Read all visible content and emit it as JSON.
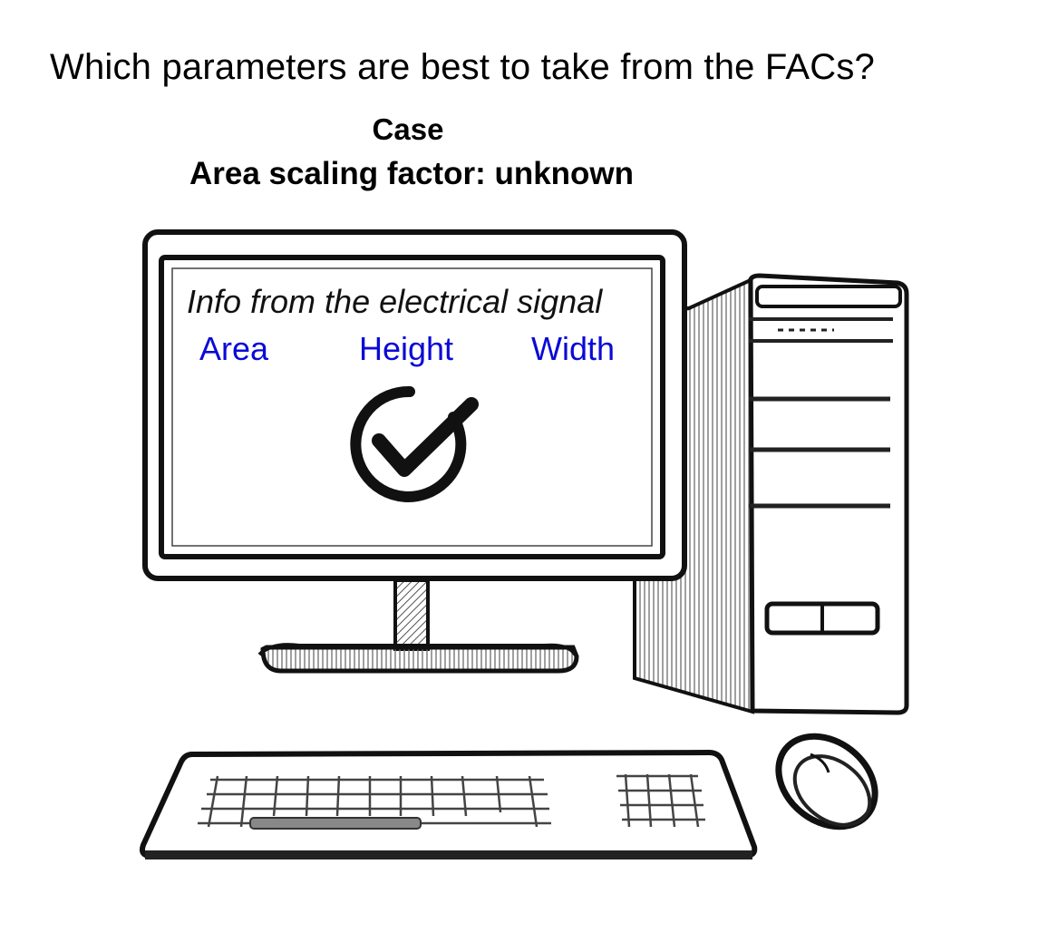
{
  "question": "Which parameters are best to take from the FACs?",
  "case": {
    "title": "Case",
    "subtitle": "Area scaling factor: unknown"
  },
  "screen": {
    "heading": "Info from the electrical signal",
    "parameters": [
      "Area",
      "Height",
      "Width"
    ],
    "parameter_color": "#0a0ad8",
    "status_icon": "check-circle-icon"
  },
  "illustration": {
    "items": [
      "monitor-icon",
      "computer-tower-icon",
      "keyboard-icon",
      "mouse-icon"
    ]
  }
}
